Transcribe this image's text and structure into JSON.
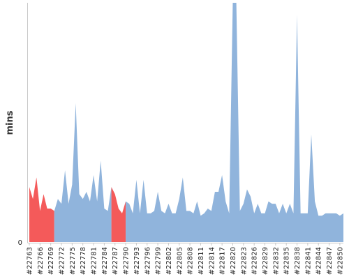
{
  "chart_data": {
    "type": "area",
    "title": "",
    "xlabel": "",
    "ylabel": "mins",
    "y_ticks": [
      "0"
    ],
    "ylim": [
      0,
      100
    ],
    "grid": false,
    "legend": "none",
    "colors": {
      "normal": "#90b4dc",
      "highlight": "#f45a5a"
    },
    "x_tick_labels": [
      "#22763",
      "#22766",
      "#22769",
      "#22772",
      "#22775",
      "#22778",
      "#22781",
      "#22784",
      "#22787",
      "#22790",
      "#22793",
      "#22796",
      "#22799",
      "#22802",
      "#22805",
      "#22808",
      "#22811",
      "#22814",
      "#22817",
      "#22820",
      "#22823",
      "#22826",
      "#22829",
      "#22832",
      "#22835",
      "#22838",
      "#22841",
      "#22844",
      "#22847",
      "#22850"
    ],
    "x": [
      22763,
      22764,
      22765,
      22766,
      22767,
      22768,
      22769,
      22770,
      22771,
      22772,
      22773,
      22774,
      22775,
      22776,
      22777,
      22778,
      22779,
      22780,
      22781,
      22782,
      22783,
      22784,
      22785,
      22786,
      22787,
      22788,
      22789,
      22790,
      22791,
      22792,
      22793,
      22794,
      22795,
      22796,
      22797,
      22798,
      22799,
      22800,
      22801,
      22802,
      22803,
      22804,
      22805,
      22806,
      22807,
      22808,
      22809,
      22810,
      22811,
      22812,
      22813,
      22814,
      22815,
      22816,
      22817,
      22818,
      22819,
      22820,
      22821,
      22822,
      22823,
      22824,
      22825,
      22826,
      22827,
      22828,
      22829,
      22830,
      22831,
      22832,
      22833,
      22834,
      22835,
      22836,
      22837,
      22838,
      22839,
      22840,
      22841,
      22842,
      22843,
      22844,
      22845,
      22846,
      22847,
      22848,
      22849,
      22850,
      22851
    ],
    "values": [
      23,
      18,
      27,
      13,
      20,
      14,
      14,
      13,
      18,
      16,
      30,
      16,
      24,
      58,
      20,
      18,
      21,
      17,
      28,
      17,
      34,
      14,
      13,
      23,
      20,
      14,
      12,
      17,
      16,
      12,
      26,
      12,
      26,
      12,
      12,
      13,
      21,
      13,
      12,
      16,
      12,
      12,
      18,
      27,
      13,
      13,
      12,
      17,
      11,
      12,
      14,
      13,
      21,
      21,
      28,
      17,
      12,
      100,
      100,
      13,
      16,
      22,
      19,
      12,
      16,
      12,
      12,
      17,
      16,
      16,
      12,
      16,
      12,
      16,
      12,
      95,
      12,
      12,
      12,
      45,
      17,
      11,
      11,
      12,
      12,
      12,
      12,
      11,
      12
    ],
    "highlighted_ranges": [
      [
        22763,
        22770
      ],
      [
        22787,
        22790
      ]
    ]
  }
}
